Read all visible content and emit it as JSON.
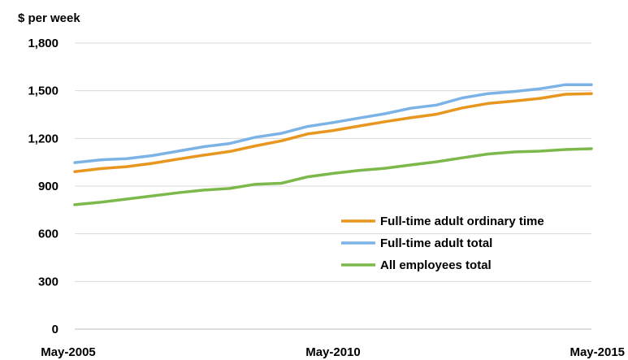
{
  "chart_data": {
    "type": "line",
    "title": "",
    "ylabel": "$ per week",
    "xlabel": "",
    "ylim": [
      0,
      1800
    ],
    "yticks": [
      0,
      300,
      600,
      900,
      1200,
      1500,
      1800
    ],
    "ytick_labels": [
      "0",
      "300",
      "600",
      "900",
      "1,200",
      "1,500",
      "1,800"
    ],
    "x_tick_labels": [
      {
        "label": "May-2005",
        "index": 0
      },
      {
        "label": "May-2010",
        "index": 10
      },
      {
        "label": "May-2015",
        "index": 20
      }
    ],
    "grid": "horizontal",
    "legend_position": "bottom-right",
    "x": [
      "May-2005",
      "Nov-2005",
      "May-2006",
      "Nov-2006",
      "May-2007",
      "Nov-2007",
      "May-2008",
      "Nov-2008",
      "May-2009",
      "Nov-2009",
      "May-2010",
      "Nov-2010",
      "May-2011",
      "Nov-2011",
      "May-2012",
      "Nov-2012",
      "May-2013",
      "Nov-2013",
      "May-2014",
      "Nov-2014",
      "May-2015"
    ],
    "series": [
      {
        "name": "Full-time adult ordinary time",
        "color": "#E8961E",
        "values": [
          991,
          1010,
          1022,
          1043,
          1070,
          1095,
          1118,
          1153,
          1185,
          1228,
          1250,
          1278,
          1305,
          1330,
          1352,
          1392,
          1420,
          1435,
          1452,
          1478,
          1482
        ]
      },
      {
        "name": "Full-time adult total",
        "color": "#7BB3E6",
        "values": [
          1048,
          1065,
          1073,
          1092,
          1120,
          1148,
          1168,
          1208,
          1232,
          1275,
          1300,
          1328,
          1355,
          1390,
          1410,
          1455,
          1482,
          1495,
          1512,
          1538,
          1538
        ]
      },
      {
        "name": "All employees total",
        "color": "#7DB84A",
        "values": [
          783,
          798,
          818,
          838,
          858,
          875,
          885,
          912,
          918,
          958,
          980,
          998,
          1012,
          1033,
          1053,
          1078,
          1102,
          1115,
          1120,
          1130,
          1135
        ]
      }
    ]
  }
}
